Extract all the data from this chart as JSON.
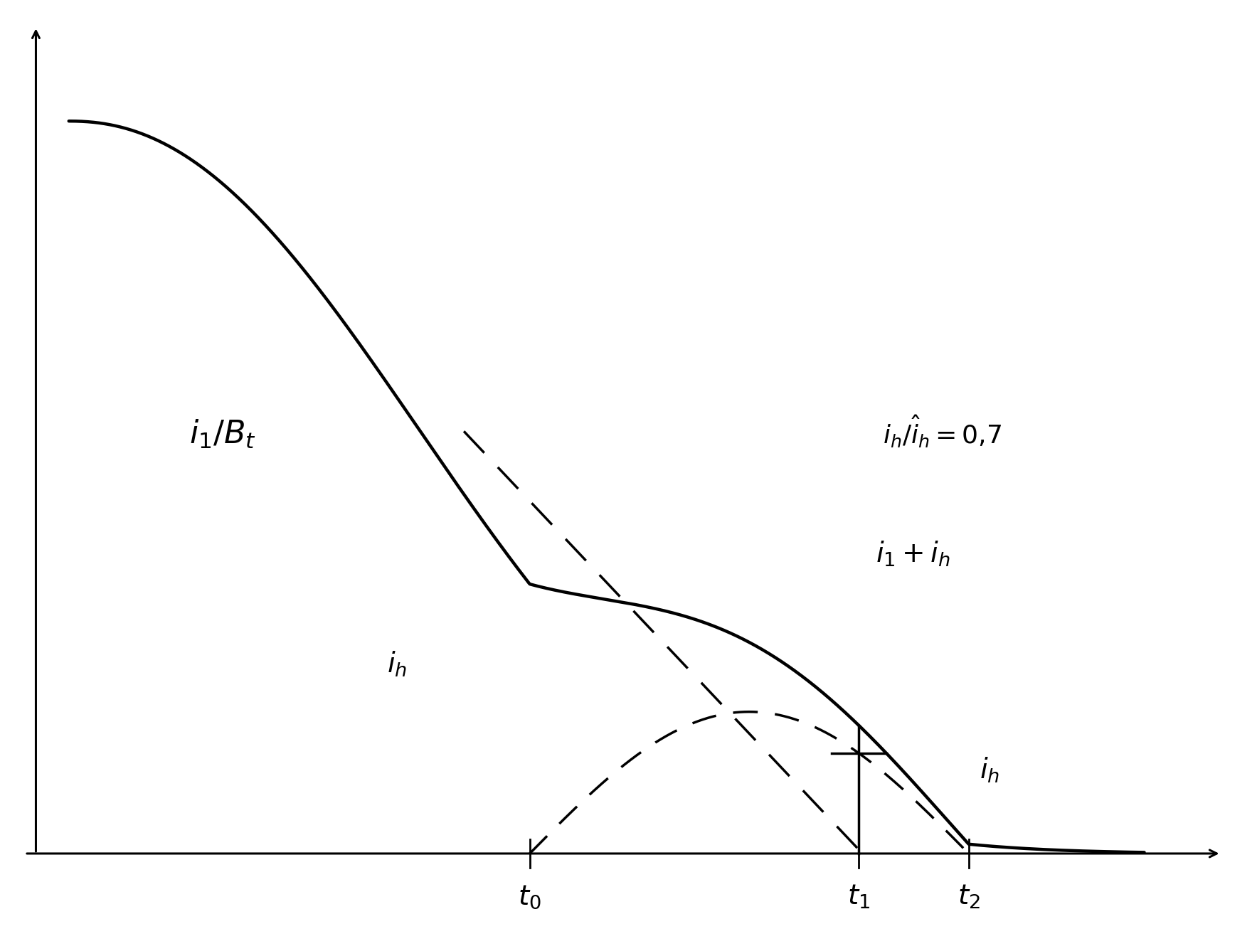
{
  "background_color": "#ffffff",
  "line_color": "#000000",
  "t0": 0.42,
  "t1": 0.72,
  "t2": 0.82,
  "figsize": [
    17.67,
    13.37
  ],
  "dpi": 100,
  "label_i1Bt": "i_1 / B_t",
  "label_i1_ih": "i_1 + i_h",
  "label_ih_left": "i_h",
  "label_ih_right": "i_h",
  "label_ratio": "i_h / ĭ_h = 0,7",
  "label_t0": "t_0",
  "label_t1": "t_1",
  "label_t2": "t_2"
}
